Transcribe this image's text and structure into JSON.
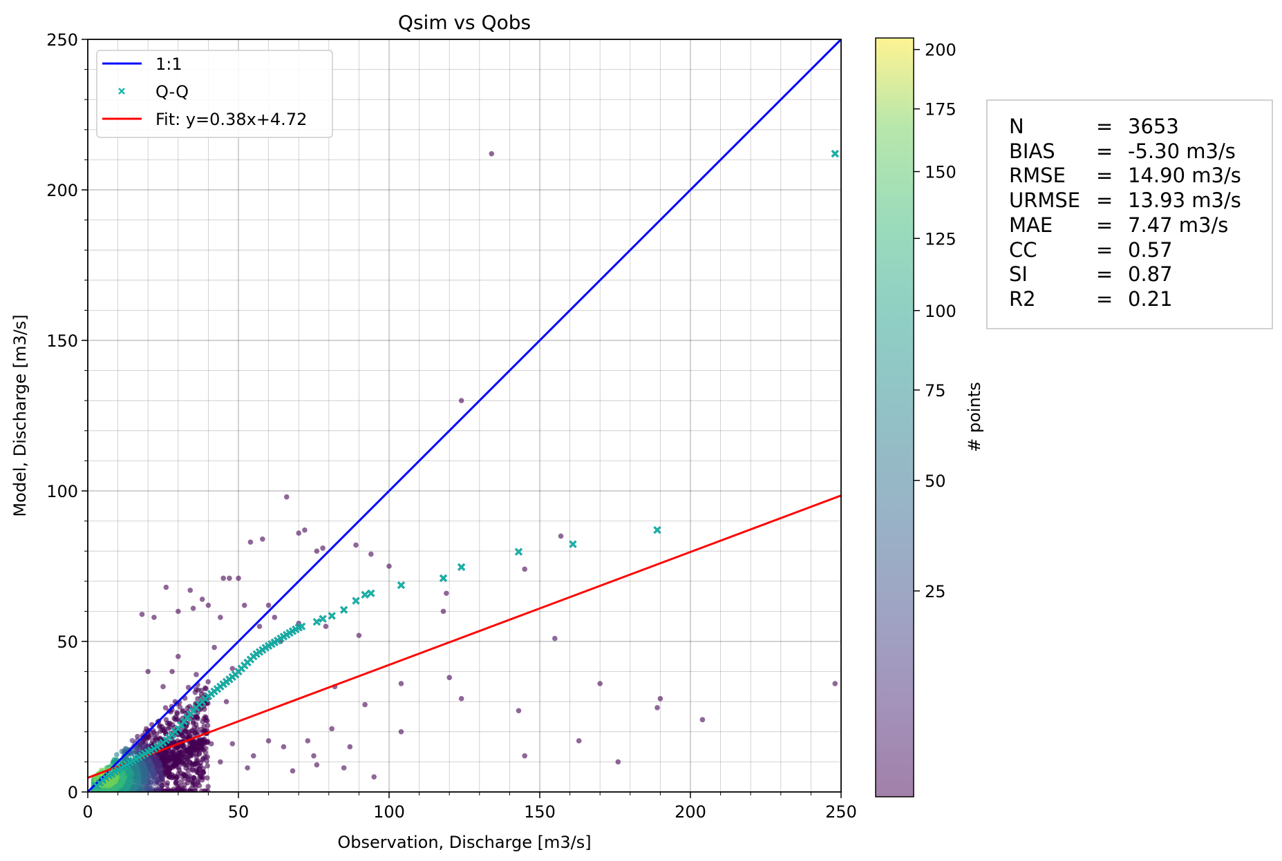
{
  "chart_data": {
    "type": "scatter",
    "title": "Qsim vs Qobs",
    "xlabel": "Observation, Discharge [m3/s]",
    "ylabel": "Model, Discharge [m3/s]",
    "xlim": [
      0,
      250
    ],
    "ylim": [
      0,
      250
    ],
    "x_ticks": [
      "0",
      "50",
      "100",
      "150",
      "200",
      "250"
    ],
    "y_ticks": [
      "0",
      "50",
      "100",
      "150",
      "200",
      "250"
    ],
    "grid": true,
    "legend_position": "top-left",
    "legend": [
      "1:1",
      "Q-Q",
      "Fit: y=0.38x+4.72"
    ],
    "lines": [
      {
        "name": "1:1",
        "color": "#0000ff",
        "slope": 1.0,
        "intercept": 0.0
      },
      {
        "name": "Fit: y=0.38x+4.72",
        "color": "#ff0000",
        "slope": 0.375,
        "intercept": 4.72
      }
    ],
    "qq_series": {
      "name": "Q-Q",
      "color": "#17b8b0",
      "x": [
        3,
        4,
        5,
        6,
        7,
        8,
        9,
        10,
        11,
        12,
        13,
        14,
        15,
        16,
        17,
        18,
        19,
        20,
        21,
        22,
        23,
        24,
        25,
        26,
        27,
        28,
        29,
        30,
        31,
        32,
        33,
        34,
        35,
        36,
        37,
        38,
        39,
        40,
        41,
        42,
        43,
        44,
        45,
        46,
        47,
        48,
        49,
        50,
        51,
        52,
        53,
        54,
        55,
        56,
        57,
        58,
        59,
        60,
        61,
        62,
        63,
        64,
        65,
        66,
        67,
        68,
        69,
        70,
        71,
        76,
        78,
        81,
        85,
        89,
        92,
        94,
        104,
        118,
        124,
        143,
        161,
        189,
        248
      ],
      "y": [
        2,
        3,
        4,
        4.7,
        5.4,
        6,
        6.7,
        7.3,
        8,
        8.6,
        9.2,
        9.8,
        10.4,
        11,
        11.5,
        12.1,
        12.7,
        13.3,
        13.8,
        14.4,
        15,
        15.7,
        16.4,
        17.2,
        18.1,
        19,
        20,
        21,
        22.2,
        23.4,
        24.6,
        25.8,
        26.9,
        28,
        29,
        30,
        30.9,
        31.8,
        32.6,
        33.4,
        34.2,
        35,
        35.8,
        36.6,
        37.4,
        38.2,
        39,
        40,
        41,
        42,
        43,
        44,
        45,
        45.8,
        46.5,
        47.2,
        47.9,
        48.5,
        49.1,
        49.7,
        50.3,
        51,
        51.6,
        52.2,
        52.8,
        53.4,
        54,
        54.6,
        55,
        56.5,
        57.5,
        58.5,
        60.5,
        63.5,
        65.5,
        66,
        68.7,
        71,
        74.7,
        79.8,
        82.3,
        87,
        212
      ]
    },
    "scatter_outliers": {
      "x": [
        134,
        124,
        66,
        72,
        70,
        89,
        78,
        76,
        94,
        100,
        58,
        54,
        26,
        34,
        45,
        47,
        50,
        40,
        35,
        30,
        18,
        22,
        38,
        44,
        52,
        60,
        62,
        70,
        79,
        90,
        57,
        64,
        42,
        30,
        28,
        48,
        36,
        20,
        25,
        46,
        82,
        119,
        118,
        155,
        145,
        157,
        124,
        120,
        104,
        189,
        190,
        204,
        248,
        170,
        143,
        176,
        163,
        92,
        87,
        95,
        76,
        73,
        81,
        65,
        55,
        48,
        60,
        75,
        85,
        104,
        145,
        41,
        37,
        44,
        53,
        68,
        33,
        26,
        24,
        39,
        29
      ],
      "y": [
        212,
        130,
        98,
        87,
        86,
        82,
        81,
        80,
        79,
        75,
        84,
        83,
        68,
        67,
        71,
        71,
        71,
        62,
        61,
        60,
        59,
        58,
        64,
        58,
        62,
        62,
        58,
        56,
        55,
        52,
        55,
        50,
        48,
        45,
        40,
        41,
        39,
        40,
        35,
        30,
        35,
        66,
        60,
        51,
        74,
        85,
        31,
        38,
        36,
        28,
        31,
        24,
        36,
        36,
        27,
        10,
        17,
        29,
        15,
        5,
        9,
        17,
        21,
        15,
        12,
        16,
        17,
        12,
        8,
        20,
        12,
        16,
        13,
        10,
        8,
        7,
        11,
        24,
        22,
        25,
        30
      ]
    },
    "density_core": {
      "x_range": [
        2,
        40
      ],
      "y_range": [
        0,
        60
      ],
      "note_ordering": "points colored by density, highest near origin"
    },
    "colorbar": {
      "label": "# points",
      "ticks": [
        "25",
        "50",
        "75",
        "100",
        "125",
        "150",
        "175",
        "200"
      ],
      "tick_values": [
        25,
        50,
        75,
        100,
        125,
        150,
        175,
        200
      ],
      "range": [
        0,
        205
      ],
      "colormap": "viridis"
    }
  },
  "stats": [
    {
      "key": "N",
      "value": "3653"
    },
    {
      "key": "BIAS",
      "value": "-5.30 m3/s"
    },
    {
      "key": "RMSE",
      "value": "14.90 m3/s"
    },
    {
      "key": "URMSE",
      "value": "13.93 m3/s"
    },
    {
      "key": "MAE",
      "value": "7.47 m3/s"
    },
    {
      "key": "CC",
      "value": "0.57"
    },
    {
      "key": "SI",
      "value": "0.87"
    },
    {
      "key": "R2",
      "value": "0.21"
    }
  ],
  "stats_eq": "="
}
